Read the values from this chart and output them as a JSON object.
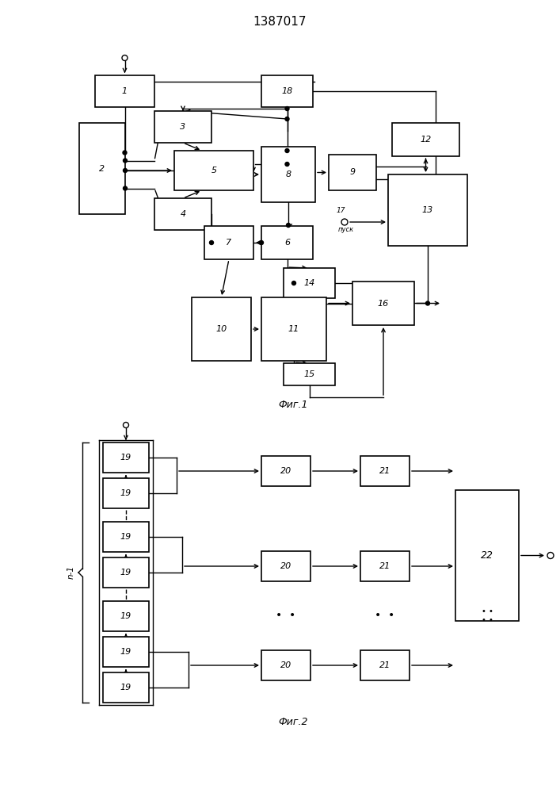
{
  "title": "1387017",
  "fig1_label": "Фиг.1",
  "fig2_label": "Фиг.2",
  "background": "#ffffff"
}
